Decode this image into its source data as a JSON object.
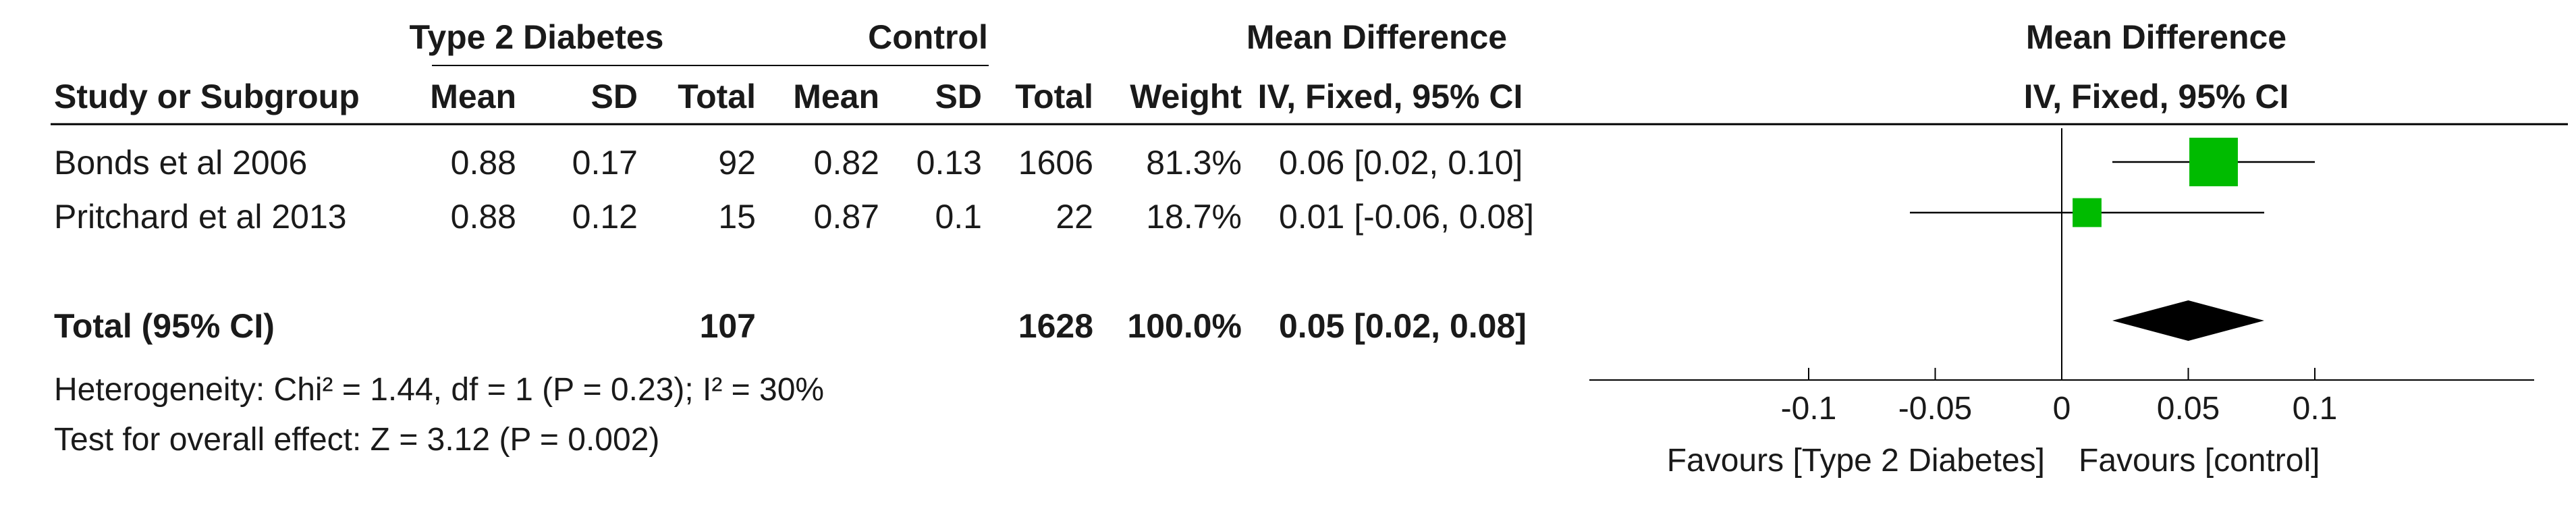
{
  "chart_data": {
    "type": "forest",
    "group_headers": {
      "experimental": "Type 2 Diabetes",
      "control": "Control"
    },
    "column_headers": {
      "study": "Study or Subgroup",
      "mean1": "Mean",
      "sd1": "SD",
      "total1": "Total",
      "mean2": "Mean",
      "sd2": "SD",
      "total2": "Total",
      "weight": "Weight",
      "effect_title": "Mean Difference",
      "effect_method": "IV, Fixed, 95% CI"
    },
    "plot_header": {
      "title": "Mean Difference",
      "method": "IV, Fixed, 95% CI"
    },
    "studies": [
      {
        "name": "Bonds et al 2006",
        "mean1": "0.88",
        "sd1": "0.17",
        "total1": "92",
        "mean2": "0.82",
        "sd2": "0.13",
        "total2": "1606",
        "weight": "81.3%",
        "ci_text": "0.06 [0.02, 0.10]",
        "md": 0.06,
        "lo": 0.02,
        "hi": 0.1,
        "weight_value": 81.3
      },
      {
        "name": "Pritchard et al 2013",
        "mean1": "0.88",
        "sd1": "0.12",
        "total1": "15",
        "mean2": "0.87",
        "sd2": "0.1",
        "total2": "22",
        "weight": "18.7%",
        "ci_text": "0.01 [-0.06, 0.08]",
        "md": 0.01,
        "lo": -0.06,
        "hi": 0.08,
        "weight_value": 18.7
      }
    ],
    "total": {
      "label": "Total (95% CI)",
      "total1": "107",
      "total2": "1628",
      "weight": "100.0%",
      "ci_text": "0.05 [0.02, 0.08]",
      "md": 0.05,
      "lo": 0.02,
      "hi": 0.08
    },
    "heterogeneity": "Heterogeneity: Chi² = 1.44, df = 1 (P = 0.23); I² = 30%",
    "overall_effect": "Test for overall effect: Z = 3.12 (P = 0.002)",
    "axis": {
      "ticks": [
        -0.1,
        -0.05,
        0,
        0.05,
        0.1
      ],
      "tick_labels": [
        "-0.1",
        "-0.05",
        "0",
        "0.05",
        "0.1"
      ],
      "favours_left": "Favours [Type 2 Diabetes]",
      "favours_right": "Favours [control]"
    },
    "colors": {
      "square": "#00bb00",
      "diamond": "#000000",
      "lines": "#000000"
    }
  }
}
